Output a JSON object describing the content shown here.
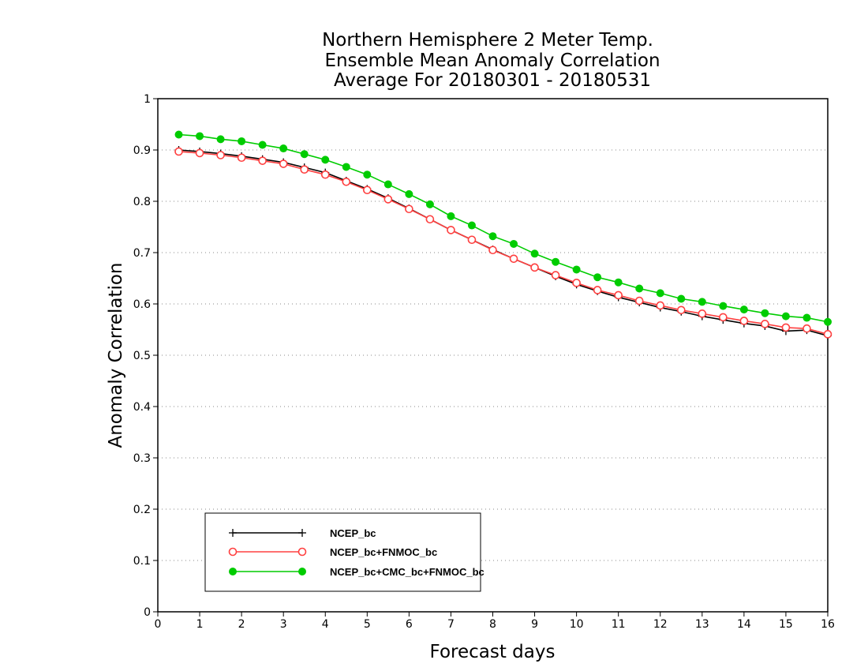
{
  "chart_data": {
    "type": "line",
    "title": [
      "Northern Hemisphere 2 Meter Temp.",
      "Ensemble Mean Anomaly Correlation",
      "Average For 20180301 - 20180531"
    ],
    "xlabel": "Forecast days",
    "ylabel": "Anomaly Correlation",
    "xlim": [
      0,
      16
    ],
    "ylim": [
      0,
      1
    ],
    "xticks": [
      0,
      1,
      2,
      3,
      4,
      5,
      6,
      7,
      8,
      9,
      10,
      11,
      12,
      13,
      14,
      15,
      16
    ],
    "yticks": [
      0,
      0.1,
      0.2,
      0.3,
      0.4,
      0.5,
      0.6,
      0.7,
      0.8,
      0.9,
      1
    ],
    "ytick_labels": [
      "0",
      "0.1",
      "0.2",
      "0.3",
      "0.4",
      "0.5",
      "0.6",
      "0.7",
      "0.8",
      "0.9",
      "1"
    ],
    "xtick_labels": [
      "0",
      "1",
      "2",
      "3",
      "4",
      "5",
      "6",
      "7",
      "8",
      "9",
      "10",
      "11",
      "12",
      "13",
      "14",
      "15",
      "16"
    ],
    "grid": "horizontal-dotted",
    "legend_position": "bottom-left",
    "x": [
      0.5,
      1,
      1.5,
      2,
      2.5,
      3,
      3.5,
      4,
      4.5,
      5,
      5.5,
      6,
      6.5,
      7,
      7.5,
      8,
      8.5,
      9,
      9.5,
      10,
      10.5,
      11,
      11.5,
      12,
      12.5,
      13,
      13.5,
      14,
      14.5,
      15,
      15.5,
      16
    ],
    "series": [
      {
        "name": "NCEP_bc",
        "color": "#000000",
        "marker": "plus",
        "values": [
          0.9,
          0.897,
          0.893,
          0.888,
          0.882,
          0.876,
          0.866,
          0.856,
          0.84,
          0.824,
          0.806,
          0.786,
          0.765,
          0.744,
          0.725,
          0.706,
          0.688,
          0.671,
          0.654,
          0.638,
          0.625,
          0.613,
          0.603,
          0.593,
          0.585,
          0.576,
          0.569,
          0.562,
          0.557,
          0.547,
          0.549,
          0.538
        ]
      },
      {
        "name": "NCEP_bc+FNMOC_bc",
        "color": "#ff4040",
        "marker": "open-circle",
        "values": [
          0.897,
          0.894,
          0.89,
          0.885,
          0.879,
          0.873,
          0.862,
          0.852,
          0.838,
          0.822,
          0.804,
          0.785,
          0.765,
          0.744,
          0.725,
          0.705,
          0.688,
          0.671,
          0.656,
          0.641,
          0.627,
          0.617,
          0.606,
          0.597,
          0.588,
          0.581,
          0.574,
          0.567,
          0.561,
          0.554,
          0.552,
          0.541
        ]
      },
      {
        "name": "NCEP_bc+CMC_bc+FNMOC_bc",
        "color": "#00cc00",
        "marker": "filled-circle",
        "values": [
          0.93,
          0.927,
          0.921,
          0.917,
          0.91,
          0.903,
          0.892,
          0.881,
          0.867,
          0.852,
          0.833,
          0.814,
          0.794,
          0.771,
          0.753,
          0.732,
          0.717,
          0.698,
          0.682,
          0.667,
          0.652,
          0.642,
          0.63,
          0.621,
          0.61,
          0.604,
          0.596,
          0.589,
          0.582,
          0.576,
          0.573,
          0.565
        ]
      }
    ]
  }
}
